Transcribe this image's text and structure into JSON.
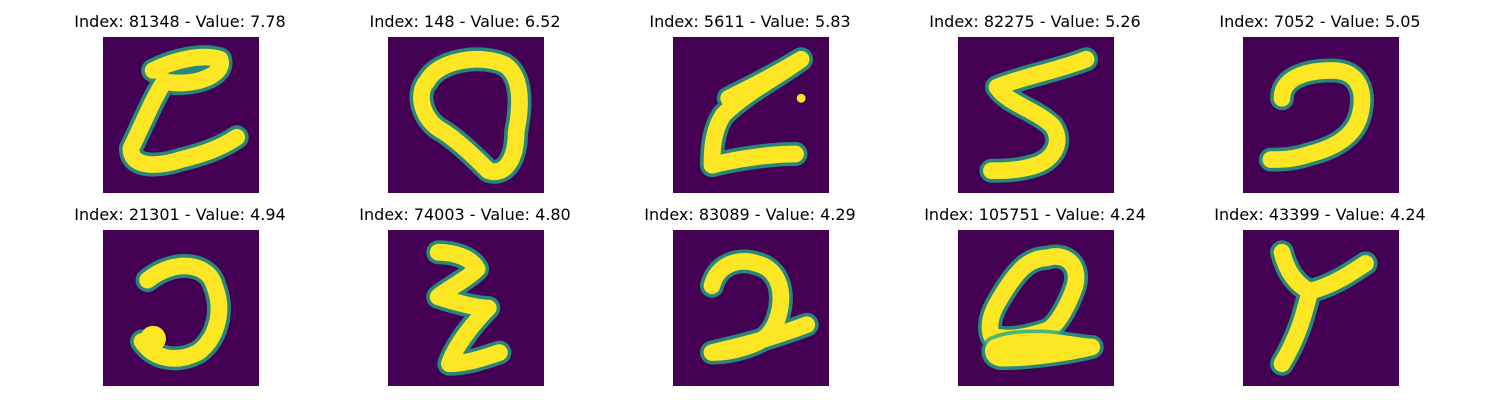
{
  "colors": {
    "background": "#440154",
    "foreground": "#fde725",
    "edge": "#22a884"
  },
  "panels": [
    {
      "title": "Index: 81348 - Value: 7.78",
      "glyph": "curved stroke shaped like a 'z' with a loop"
    },
    {
      "title": "Index: 148 - Value: 6.52",
      "glyph": "closed loop, digit 0"
    },
    {
      "title": "Index: 5611 - Value: 5.83",
      "glyph": "curved stroke shaped like a 'z'"
    },
    {
      "title": "Index: 82275 - Value: 5.26",
      "glyph": "digit 5 / letter S"
    },
    {
      "title": "Index: 7052 - Value: 5.05",
      "glyph": "digit 2 / reversed hook"
    },
    {
      "title": "Index: 21301 - Value: 4.94",
      "glyph": "hook like a J"
    },
    {
      "title": "Index: 74003 - Value: 4.80",
      "glyph": "zigzag like a 'z'"
    },
    {
      "title": "Index: 83089 - Value: 4.29",
      "glyph": "digit 2"
    },
    {
      "title": "Index: 105751 - Value: 4.24",
      "glyph": "loop with base, letter Q / digit 2"
    },
    {
      "title": "Index: 43399 - Value: 4.24",
      "glyph": "letter Y"
    }
  ]
}
